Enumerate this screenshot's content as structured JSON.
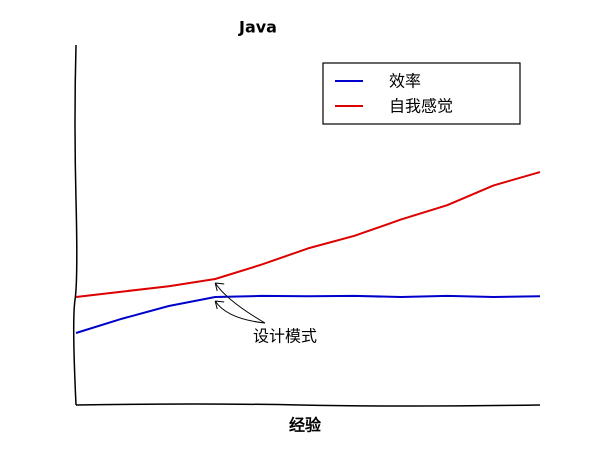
{
  "chart_data": {
    "type": "line",
    "title": "Java",
    "xlabel": "经验",
    "x": [
      0,
      1,
      2,
      3,
      4,
      5,
      6,
      7,
      8,
      9,
      10
    ],
    "series": [
      {
        "name": "效率",
        "color": "#0000cc",
        "values": [
          2.0,
          2.4,
          2.75,
          3.0,
          3.03,
          3.02,
          3.03,
          3.0,
          3.03,
          3.0,
          3.02
        ]
      },
      {
        "name": "自我感觉",
        "color": "#dd0000",
        "values": [
          3.0,
          3.15,
          3.3,
          3.5,
          3.9,
          4.35,
          4.7,
          5.15,
          5.55,
          6.1,
          6.47
        ]
      }
    ],
    "xlim": [
      0,
      10
    ],
    "ylim": [
      0,
      10
    ],
    "annotation": "设计模式",
    "annotation_x": 3,
    "legend": "upper right",
    "grid": false
  }
}
